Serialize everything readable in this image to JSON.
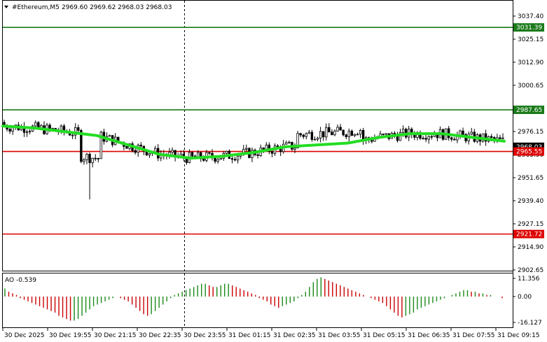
{
  "header": {
    "symbol": "#Ethereum,M5",
    "ohlc": "2969.60 2969.62 2968.03 2968.03"
  },
  "oscillator": {
    "label": "AO -0.539"
  },
  "colors": {
    "candle": "#000000",
    "ma": "#22dd22",
    "support_line": "#dd0000",
    "resistance_line": "#1a7a1a",
    "ao_up": "#1a8a1a",
    "ao_down": "#cc0000"
  },
  "chart_data": [
    {
      "type": "candlestick",
      "symbol": "#Ethereum",
      "timeframe": "M5",
      "y_ticks": [
        "3037.40",
        "3025.15",
        "3012.90",
        "3000.65",
        "2976.15",
        "2963.90",
        "2951.65",
        "2939.40",
        "2927.15",
        "2914.90",
        "2902.65"
      ],
      "ylim": [
        2900,
        3044
      ],
      "x_ticks": [
        "30 Dec 2025",
        "30 Dec 19:55",
        "30 Dec 21:15",
        "30 Dec 22:35",
        "30 Dec 23:55",
        "31 Dec 01:15",
        "31 Dec 02:35",
        "31 Dec 03:55",
        "31 Dec 05:15",
        "31 Dec 06:35",
        "31 Dec 07:55",
        "31 Dec 09:15"
      ],
      "horizontal_levels": [
        {
          "value": 3031.39,
          "label": "3031.39",
          "color": "#1a7a1a"
        },
        {
          "value": 2987.65,
          "label": "2987.65",
          "color": "#1a7a1a"
        },
        {
          "value": 2965.55,
          "label": "2965.55",
          "color": "#dd0000"
        },
        {
          "value": 2921.72,
          "label": "2921.72",
          "color": "#dd0000"
        }
      ],
      "current_price": {
        "value": 2968.03,
        "label": "2968.03"
      },
      "moving_average_path": [
        2979,
        2978,
        2976,
        2974,
        2969,
        2964,
        2962,
        2963,
        2965,
        2968,
        2969,
        2970,
        2973,
        2975,
        2975,
        2973,
        2971
      ]
    },
    {
      "type": "bar",
      "name": "AO",
      "y_ticks": [
        "11.356",
        "0.00",
        "-16.127"
      ],
      "ylim": [
        -16.127,
        11.356
      ],
      "values": [
        5,
        3,
        2,
        1,
        -1,
        -2,
        -3,
        -4,
        -5,
        -6,
        -7,
        -8,
        -9,
        -10,
        -12,
        -13,
        -14,
        -15,
        -15,
        -14,
        -12,
        -10,
        -8,
        -6,
        -5,
        -4,
        -3,
        -2,
        -1,
        0,
        -1,
        -2,
        -3,
        -5,
        -7,
        -9,
        -11,
        -12,
        -11,
        -9,
        -7,
        -5,
        -3,
        -1,
        1,
        2,
        3,
        4,
        5,
        6,
        7,
        8,
        8,
        7,
        6,
        6,
        7,
        8,
        8,
        7,
        6,
        5,
        4,
        3,
        2,
        1,
        -1,
        -2,
        -3,
        -5,
        -6,
        -7,
        -6,
        -5,
        -4,
        -3,
        -1,
        1,
        3,
        6,
        9,
        11,
        12,
        11,
        10,
        9,
        8,
        7,
        6,
        5,
        4,
        3,
        2,
        1,
        0,
        -1,
        -2,
        -3,
        -4,
        -6,
        -8,
        -10,
        -12,
        -13,
        -12,
        -11,
        -10,
        -8,
        -7,
        -6,
        -5,
        -4,
        -3,
        -2,
        -1,
        0,
        1,
        2,
        3,
        4,
        4,
        3,
        3,
        2,
        2,
        1,
        1,
        0,
        0,
        -1
      ]
    }
  ]
}
